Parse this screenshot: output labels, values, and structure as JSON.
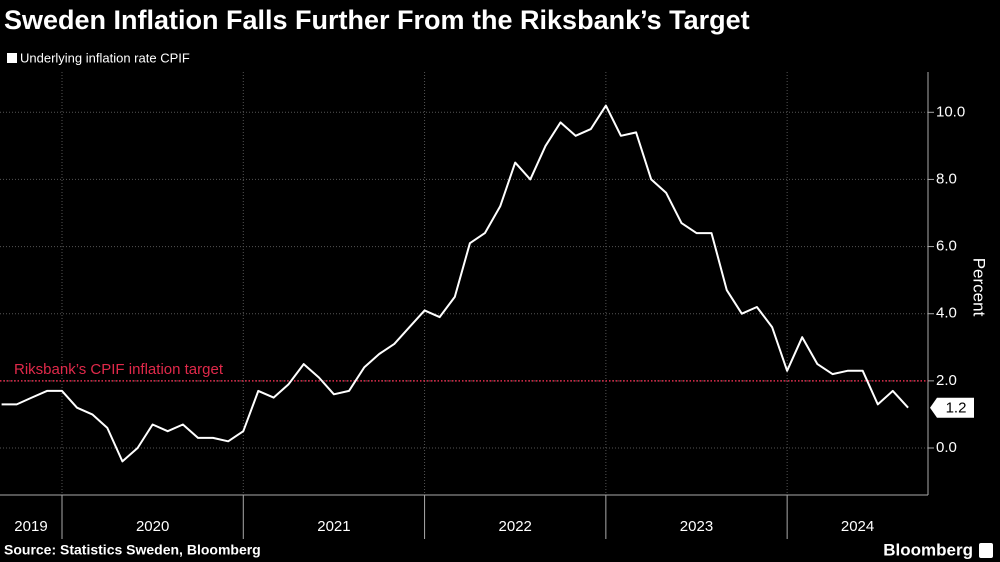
{
  "chart_data": {
    "type": "line",
    "title": "Sweden Inflation Falls Further From the Riksbank’s Target",
    "source": "Source: Statistics Sweden, Bloomberg",
    "brand": "Bloomberg",
    "y_axis_label": "Percent",
    "x": [
      2019.667,
      2019.75,
      2019.833,
      2019.917,
      2020.0,
      2020.083,
      2020.167,
      2020.25,
      2020.333,
      2020.417,
      2020.5,
      2020.583,
      2020.667,
      2020.75,
      2020.833,
      2020.917,
      2021.0,
      2021.083,
      2021.167,
      2021.25,
      2021.333,
      2021.417,
      2021.5,
      2021.583,
      2021.667,
      2021.75,
      2021.833,
      2021.917,
      2022.0,
      2022.083,
      2022.167,
      2022.25,
      2022.333,
      2022.417,
      2022.5,
      2022.583,
      2022.667,
      2022.75,
      2022.833,
      2022.917,
      2023.0,
      2023.083,
      2023.167,
      2023.25,
      2023.333,
      2023.417,
      2023.5,
      2023.583,
      2023.667,
      2023.75,
      2023.833,
      2023.917,
      2024.0,
      2024.083,
      2024.167,
      2024.25,
      2024.333,
      2024.417,
      2024.5,
      2024.583,
      2024.667
    ],
    "series": [
      {
        "name": "Underlying inflation rate CPIF",
        "color": "#ffffff",
        "values": [
          1.3,
          1.3,
          1.5,
          1.7,
          1.7,
          1.2,
          1.0,
          0.6,
          -0.4,
          0.0,
          0.7,
          0.5,
          0.7,
          0.3,
          0.3,
          0.2,
          0.5,
          1.7,
          1.5,
          1.9,
          2.5,
          2.1,
          1.6,
          1.7,
          2.4,
          2.8,
          3.1,
          3.6,
          4.1,
          3.9,
          4.5,
          6.1,
          6.4,
          7.2,
          8.5,
          8.0,
          9.0,
          9.7,
          9.3,
          9.5,
          10.2,
          9.3,
          9.4,
          8.0,
          7.6,
          6.7,
          6.4,
          6.4,
          4.7,
          4.0,
          4.2,
          3.6,
          2.3,
          3.3,
          2.5,
          2.2,
          2.3,
          2.3,
          1.3,
          1.7,
          1.2
        ]
      }
    ],
    "target": {
      "value": 2.0,
      "label": "Riksbank’s CPIF inflation target",
      "color": "#e0294a"
    },
    "xlim": [
      2019.658,
      2024.777
    ],
    "xticks": [
      2019,
      2020,
      2021,
      2022,
      2023,
      2024
    ],
    "ylim": [
      -1.4,
      11.2
    ],
    "yticks": [
      {
        "value": 0,
        "label": "0.0"
      },
      {
        "value": 2,
        "label": "2.0"
      },
      {
        "value": 4,
        "label": "4.0"
      },
      {
        "value": 6,
        "label": "6.0"
      },
      {
        "value": 8,
        "label": "8.0"
      },
      {
        "value": 10,
        "label": "10.0"
      }
    ],
    "grid": true
  }
}
